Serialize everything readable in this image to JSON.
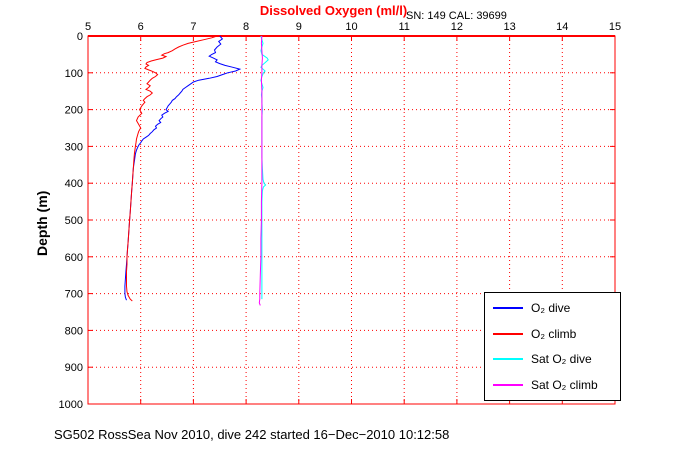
{
  "chart_data": {
    "type": "line",
    "title": "Dissolved Oxygen (ml/l)",
    "annotation": "SN: 149  CAL: 39699",
    "caption": "SG502 RossSea Nov 2010, dive 242 started 16−Dec−2010 10:12:58",
    "xlabel": "",
    "ylabel": "Depth (m)",
    "x_range": [
      5,
      15
    ],
    "y_range": [
      0,
      1000
    ],
    "y_inverted": true,
    "x_ticks": [
      5,
      6,
      7,
      8,
      9,
      10,
      11,
      12,
      13,
      14,
      15
    ],
    "y_ticks": [
      0,
      100,
      200,
      300,
      400,
      500,
      600,
      700,
      800,
      900,
      1000
    ],
    "grid": true,
    "grid_color": "#ff0000",
    "axis_color": "#ff0000",
    "title_color": "#ff0000",
    "legend_position": "lower-right",
    "series": [
      {
        "id": "o2-dive",
        "label": "O₂ dive",
        "color": "#0000ff",
        "points": [
          [
            0,
            7.5
          ],
          [
            8,
            7.55
          ],
          [
            15,
            7.48
          ],
          [
            22,
            7.52
          ],
          [
            30,
            7.45
          ],
          [
            38,
            7.4
          ],
          [
            45,
            7.42
          ],
          [
            50,
            7.35
          ],
          [
            55,
            7.3
          ],
          [
            60,
            7.38
          ],
          [
            65,
            7.45
          ],
          [
            70,
            7.42
          ],
          [
            75,
            7.5
          ],
          [
            80,
            7.6
          ],
          [
            85,
            7.75
          ],
          [
            90,
            7.88
          ],
          [
            95,
            7.8
          ],
          [
            100,
            7.65
          ],
          [
            105,
            7.55
          ],
          [
            110,
            7.45
          ],
          [
            115,
            7.3
          ],
          [
            120,
            7.1
          ],
          [
            125,
            7.0
          ],
          [
            130,
            6.95
          ],
          [
            135,
            6.9
          ],
          [
            140,
            6.85
          ],
          [
            145,
            6.8
          ],
          [
            150,
            6.78
          ],
          [
            155,
            6.75
          ],
          [
            160,
            6.72
          ],
          [
            165,
            6.68
          ],
          [
            170,
            6.65
          ],
          [
            175,
            6.6
          ],
          [
            180,
            6.58
          ],
          [
            185,
            6.55
          ],
          [
            190,
            6.52
          ],
          [
            195,
            6.5
          ],
          [
            200,
            6.48
          ],
          [
            205,
            6.52
          ],
          [
            210,
            6.45
          ],
          [
            215,
            6.4
          ],
          [
            220,
            6.42
          ],
          [
            225,
            6.38
          ],
          [
            230,
            6.35
          ],
          [
            235,
            6.38
          ],
          [
            240,
            6.32
          ],
          [
            245,
            6.28
          ],
          [
            250,
            6.3
          ],
          [
            255,
            6.25
          ],
          [
            260,
            6.22
          ],
          [
            265,
            6.18
          ],
          [
            270,
            6.15
          ],
          [
            275,
            6.1
          ],
          [
            280,
            6.05
          ],
          [
            285,
            6.02
          ],
          [
            290,
            6.0
          ],
          [
            295,
            5.97
          ],
          [
            300,
            5.95
          ],
          [
            310,
            5.92
          ],
          [
            320,
            5.9
          ],
          [
            330,
            5.89
          ],
          [
            340,
            5.88
          ],
          [
            350,
            5.87
          ],
          [
            360,
            5.86
          ],
          [
            380,
            5.85
          ],
          [
            400,
            5.84
          ],
          [
            420,
            5.83
          ],
          [
            440,
            5.82
          ],
          [
            460,
            5.81
          ],
          [
            480,
            5.8
          ],
          [
            500,
            5.79
          ],
          [
            520,
            5.78
          ],
          [
            540,
            5.77
          ],
          [
            560,
            5.76
          ],
          [
            580,
            5.75
          ],
          [
            600,
            5.74
          ],
          [
            620,
            5.73
          ],
          [
            640,
            5.72
          ],
          [
            660,
            5.71
          ],
          [
            680,
            5.7
          ],
          [
            700,
            5.7
          ],
          [
            710,
            5.71
          ],
          [
            718,
            5.73
          ]
        ]
      },
      {
        "id": "o2-climb",
        "label": "O₂ climb",
        "color": "#ff0000",
        "points": [
          [
            0,
            7.45
          ],
          [
            5,
            7.35
          ],
          [
            10,
            7.2
          ],
          [
            15,
            7.05
          ],
          [
            20,
            6.9
          ],
          [
            25,
            6.8
          ],
          [
            30,
            6.72
          ],
          [
            35,
            6.65
          ],
          [
            40,
            6.6
          ],
          [
            45,
            6.52
          ],
          [
            48,
            6.45
          ],
          [
            52,
            6.4
          ],
          [
            56,
            6.48
          ],
          [
            60,
            6.42
          ],
          [
            64,
            6.3
          ],
          [
            68,
            6.2
          ],
          [
            72,
            6.12
          ],
          [
            76,
            6.1
          ],
          [
            80,
            6.15
          ],
          [
            84,
            6.1
          ],
          [
            88,
            6.08
          ],
          [
            92,
            6.15
          ],
          [
            96,
            6.22
          ],
          [
            100,
            6.28
          ],
          [
            105,
            6.32
          ],
          [
            110,
            6.28
          ],
          [
            115,
            6.22
          ],
          [
            120,
            6.18
          ],
          [
            125,
            6.15
          ],
          [
            130,
            6.12
          ],
          [
            135,
            6.18
          ],
          [
            140,
            6.15
          ],
          [
            145,
            6.1
          ],
          [
            150,
            6.18
          ],
          [
            155,
            6.22
          ],
          [
            160,
            6.18
          ],
          [
            165,
            6.12
          ],
          [
            170,
            6.08
          ],
          [
            175,
            6.05
          ],
          [
            180,
            6.08
          ],
          [
            185,
            6.05
          ],
          [
            190,
            6.02
          ],
          [
            195,
            6.0
          ],
          [
            200,
            5.98
          ],
          [
            210,
            6.02
          ],
          [
            220,
            5.95
          ],
          [
            230,
            5.92
          ],
          [
            240,
            5.96
          ],
          [
            250,
            6.0
          ],
          [
            255,
            5.98
          ],
          [
            260,
            5.96
          ],
          [
            270,
            5.94
          ],
          [
            280,
            5.92
          ],
          [
            290,
            5.91
          ],
          [
            300,
            5.9
          ],
          [
            320,
            5.88
          ],
          [
            340,
            5.87
          ],
          [
            360,
            5.86
          ],
          [
            380,
            5.85
          ],
          [
            400,
            5.84
          ],
          [
            420,
            5.83
          ],
          [
            440,
            5.82
          ],
          [
            460,
            5.81
          ],
          [
            480,
            5.8
          ],
          [
            500,
            5.79
          ],
          [
            520,
            5.78
          ],
          [
            540,
            5.77
          ],
          [
            560,
            5.76
          ],
          [
            580,
            5.75
          ],
          [
            600,
            5.74
          ],
          [
            620,
            5.74
          ],
          [
            640,
            5.73
          ],
          [
            660,
            5.73
          ],
          [
            680,
            5.73
          ],
          [
            695,
            5.74
          ],
          [
            705,
            5.76
          ],
          [
            715,
            5.8
          ],
          [
            720,
            5.84
          ]
        ]
      },
      {
        "id": "sat-o2-dive",
        "label": "Sat O₂ dive",
        "color": "#00ffff",
        "points": [
          [
            0,
            8.28
          ],
          [
            10,
            8.3
          ],
          [
            20,
            8.32
          ],
          [
            30,
            8.3
          ],
          [
            40,
            8.28
          ],
          [
            50,
            8.3
          ],
          [
            55,
            8.35
          ],
          [
            60,
            8.4
          ],
          [
            65,
            8.42
          ],
          [
            70,
            8.38
          ],
          [
            75,
            8.34
          ],
          [
            80,
            8.3
          ],
          [
            85,
            8.28
          ],
          [
            90,
            8.32
          ],
          [
            95,
            8.36
          ],
          [
            100,
            8.33
          ],
          [
            110,
            8.3
          ],
          [
            120,
            8.28
          ],
          [
            130,
            8.3
          ],
          [
            140,
            8.32
          ],
          [
            150,
            8.3
          ],
          [
            160,
            8.29
          ],
          [
            170,
            8.3
          ],
          [
            180,
            8.3
          ],
          [
            200,
            8.31
          ],
          [
            220,
            8.3
          ],
          [
            250,
            8.3
          ],
          [
            280,
            8.3
          ],
          [
            300,
            8.3
          ],
          [
            330,
            8.3
          ],
          [
            360,
            8.31
          ],
          [
            390,
            8.32
          ],
          [
            400,
            8.34
          ],
          [
            405,
            8.37
          ],
          [
            410,
            8.33
          ],
          [
            420,
            8.31
          ],
          [
            450,
            8.3
          ],
          [
            480,
            8.3
          ],
          [
            500,
            8.3
          ],
          [
            550,
            8.3
          ],
          [
            600,
            8.3
          ],
          [
            650,
            8.3
          ],
          [
            700,
            8.3
          ],
          [
            715,
            8.3
          ]
        ]
      },
      {
        "id": "sat-o2-climb",
        "label": "Sat O₂ climb",
        "color": "#ff00ff",
        "points": [
          [
            0,
            8.3
          ],
          [
            20,
            8.29
          ],
          [
            40,
            8.3
          ],
          [
            60,
            8.31
          ],
          [
            80,
            8.3
          ],
          [
            100,
            8.3
          ],
          [
            120,
            8.29
          ],
          [
            150,
            8.3
          ],
          [
            180,
            8.3
          ],
          [
            210,
            8.3
          ],
          [
            250,
            8.3
          ],
          [
            300,
            8.3
          ],
          [
            350,
            8.3
          ],
          [
            400,
            8.3
          ],
          [
            450,
            8.29
          ],
          [
            500,
            8.29
          ],
          [
            550,
            8.28
          ],
          [
            600,
            8.28
          ],
          [
            650,
            8.27
          ],
          [
            700,
            8.26
          ],
          [
            715,
            8.26
          ],
          [
            725,
            8.25
          ],
          [
            732,
            8.27
          ]
        ]
      }
    ]
  }
}
